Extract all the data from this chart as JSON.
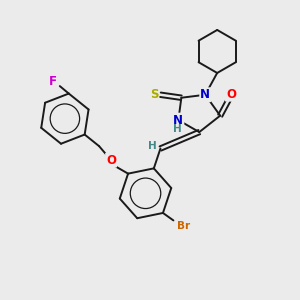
{
  "background_color": "#ebebeb",
  "fig_size": [
    3.0,
    3.0
  ],
  "dpi": 100,
  "bond_color": "#1a1a1a",
  "bond_width": 1.4,
  "atom_colors": {
    "O": "#ff0000",
    "N": "#0000cc",
    "S": "#aaaa00",
    "F": "#cc00cc",
    "Br": "#cc6600",
    "H": "#448888",
    "C": "#1a1a1a"
  },
  "font_size_atoms": 8.5,
  "font_size_h": 7.5,
  "font_size_br": 7.5
}
